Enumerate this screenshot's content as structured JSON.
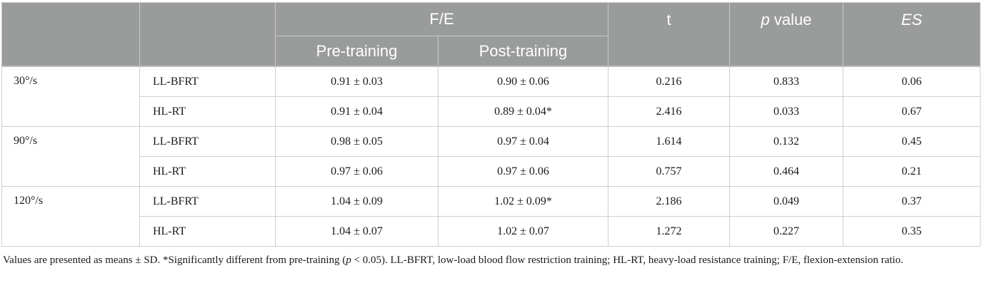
{
  "header": {
    "fe": "F/E",
    "pre": "Pre-training",
    "post": "Post-training",
    "t": "t",
    "p_italic": "p",
    "p_rest": " value",
    "es": "ES"
  },
  "blocks": [
    {
      "speed": "30°/s",
      "rows": [
        {
          "group": "LL-BFRT",
          "pre": "0.91 ± 0.03",
          "post": "0.90 ± 0.06",
          "t": "0.216",
          "p": "0.833",
          "es": "0.06"
        },
        {
          "group": "HL-RT",
          "pre": "0.91 ± 0.04",
          "post": "0.89 ± 0.04*",
          "t": "2.416",
          "p": "0.033",
          "es": "0.67"
        }
      ]
    },
    {
      "speed": "90°/s",
      "rows": [
        {
          "group": "LL-BFRT",
          "pre": "0.98 ± 0.05",
          "post": "0.97 ± 0.04",
          "t": "1.614",
          "p": "0.132",
          "es": "0.45"
        },
        {
          "group": "HL-RT",
          "pre": "0.97 ± 0.06",
          "post": "0.97 ± 0.06",
          "t": "0.757",
          "p": "0.464",
          "es": "0.21"
        }
      ]
    },
    {
      "speed": "120°/s",
      "rows": [
        {
          "group": "LL-BFRT",
          "pre": "1.04 ± 0.09",
          "post": "1.02 ± 0.09*",
          "t": "2.186",
          "p": "0.049",
          "es": "0.37"
        },
        {
          "group": "HL-RT",
          "pre": "1.04 ± 0.07",
          "post": "1.02 ± 0.07",
          "t": "1.272",
          "p": "0.227",
          "es": "0.35"
        }
      ]
    }
  ],
  "footnote": {
    "a": "Values are presented as means ± SD. *Significantly different from pre-training (",
    "p": "p",
    "b": " < 0.05). LL-BFRT, low-load blood flow restriction training; HL-RT, heavy-load resistance training; F/E, flexion-extension ratio."
  }
}
